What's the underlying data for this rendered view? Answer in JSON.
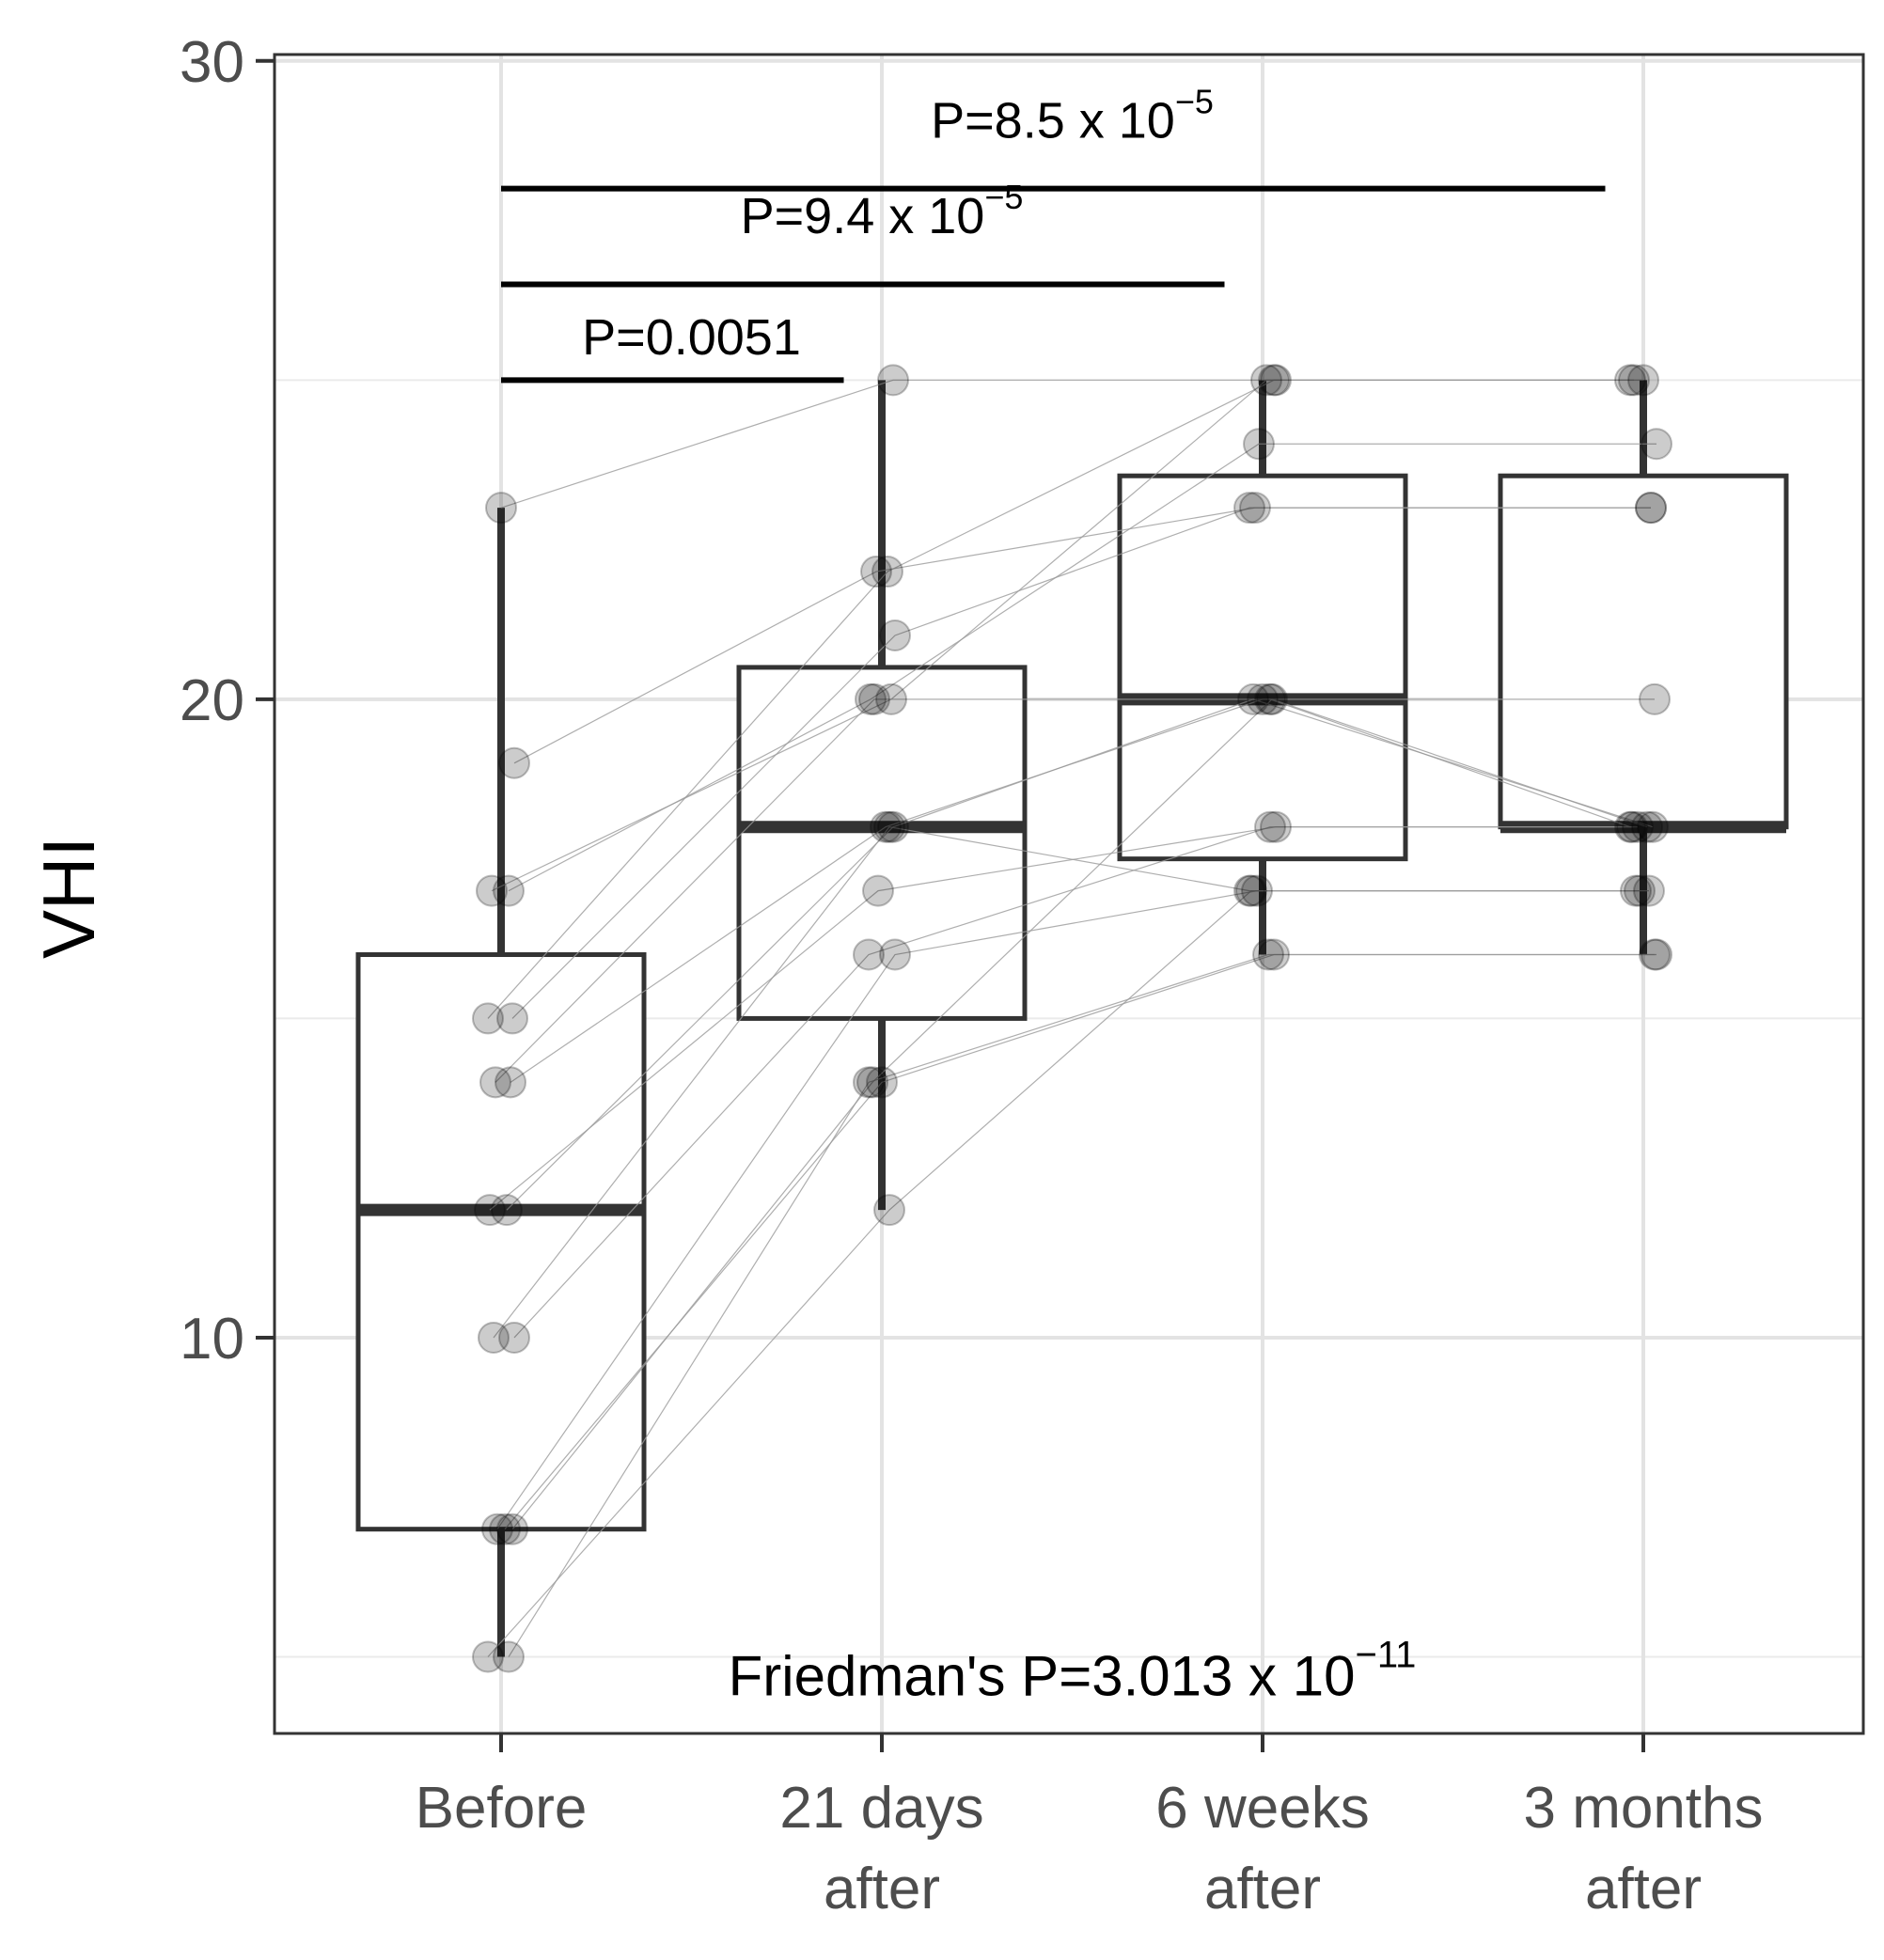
{
  "chart_data": {
    "type": "boxplot",
    "ylabel": "VHI",
    "xlabel": "",
    "ylim": [
      3.8,
      30.1
    ],
    "yticks": [
      10,
      20,
      30
    ],
    "y_minor_gridlines": [
      5,
      15,
      25
    ],
    "grid": true,
    "categories": [
      "Before",
      "21 days after",
      "6 weeks after",
      "3 months after"
    ],
    "category_label_lines": [
      [
        "Before"
      ],
      [
        "21 days",
        "after"
      ],
      [
        "6 weeks",
        "after"
      ],
      [
        "3 months",
        "after"
      ]
    ],
    "boxes": [
      {
        "name": "Before",
        "whisker_low": 5,
        "q1": 7,
        "median": 12,
        "q3": 16,
        "whisker_high": 23
      },
      {
        "name": "21 days after",
        "whisker_low": 12,
        "q1": 15,
        "median": 18,
        "q3": 20.5,
        "whisker_high": 25
      },
      {
        "name": "6 weeks after",
        "whisker_low": 16,
        "q1": 17.5,
        "median": 20,
        "q3": 23.5,
        "whisker_high": 25
      },
      {
        "name": "3 months after",
        "whisker_low": 16,
        "q1": 18,
        "median": 18,
        "q3": 23.5,
        "whisker_high": 25
      }
    ],
    "subjects": [
      [
        23,
        25,
        25,
        25
      ],
      [
        19,
        22,
        23,
        23
      ],
      [
        17,
        20,
        25,
        25
      ],
      [
        17,
        20,
        24,
        24
      ],
      [
        15,
        22,
        25,
        25
      ],
      [
        15,
        21,
        23,
        23
      ],
      [
        14,
        20,
        20,
        18
      ],
      [
        14,
        18,
        20,
        20
      ],
      [
        12,
        17,
        18,
        18
      ],
      [
        12,
        18,
        20,
        18
      ],
      [
        10,
        16,
        18,
        18
      ],
      [
        10,
        18,
        17,
        17
      ],
      [
        7,
        14,
        16,
        16
      ],
      [
        7,
        16,
        17,
        17
      ],
      [
        7,
        14,
        20,
        18
      ],
      [
        5,
        12,
        17,
        17
      ],
      [
        5,
        14,
        16,
        16
      ]
    ],
    "annotations": [
      {
        "base": "P=0.0051",
        "sup": "",
        "from": 0,
        "to": 0.9,
        "y": 25,
        "label_y": 25.4,
        "label_x": 0.5
      },
      {
        "base": "P=9.4 x 10",
        "sup": "−5",
        "from": 0,
        "to": 1.9,
        "y": 26.5,
        "label_y": 27.3,
        "label_x": 1.0
      },
      {
        "base": "P=8.5 x 10",
        "sup": "−5",
        "from": 0,
        "to": 2.9,
        "y": 28,
        "label_y": 28.8,
        "label_x": 1.5
      }
    ],
    "friedman": {
      "base": "Friedman's  P=3.013 x 10",
      "sup": "−11",
      "y": 4.4,
      "x": 1.5
    }
  }
}
